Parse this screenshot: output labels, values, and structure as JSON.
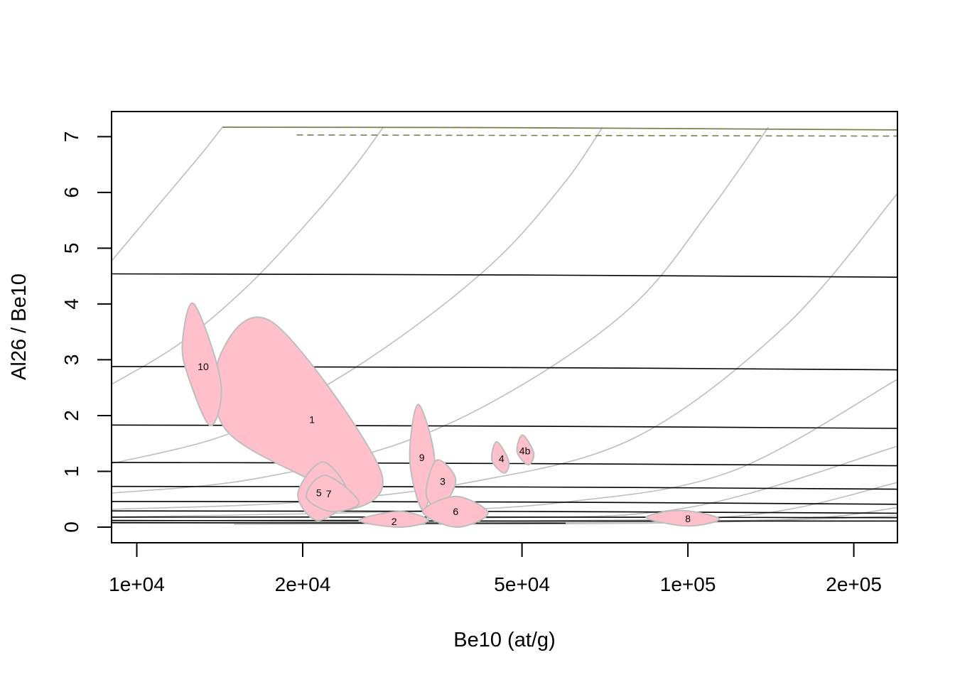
{
  "chart_data": {
    "type": "scatter",
    "title": "",
    "xlabel": "Be10 (at/g)",
    "ylabel": "Al26 / Be10",
    "x_scale": "log",
    "xlim": [
      9000,
      240000
    ],
    "ylim": [
      -0.28,
      7.45
    ],
    "grid": false,
    "legend": "none",
    "x_ticks": [
      {
        "value": 10000,
        "label": "1e+04"
      },
      {
        "value": 20000,
        "label": "2e+04"
      },
      {
        "value": 50000,
        "label": "5e+04"
      },
      {
        "value": 100000,
        "label": "1e+05"
      },
      {
        "value": 200000,
        "label": "2e+05"
      }
    ],
    "y_ticks": [
      {
        "value": 0,
        "label": "0"
      },
      {
        "value": 1,
        "label": "1"
      },
      {
        "value": 2,
        "label": "2"
      },
      {
        "value": 3,
        "label": "3"
      },
      {
        "value": 4,
        "label": "4"
      },
      {
        "value": 5,
        "label": "5"
      },
      {
        "value": 6,
        "label": "6"
      },
      {
        "value": 7,
        "label": "7"
      }
    ],
    "ellipses": [
      {
        "label": "1",
        "points": [
          [
            17700,
            3.66
          ],
          [
            27600,
            1.05
          ],
          [
            24500,
            0.32
          ],
          [
            21500,
            0.75
          ],
          [
            14500,
            1.75
          ],
          [
            14200,
            3.1
          ]
        ],
        "label_at": [
          20800,
          1.93
        ]
      },
      {
        "label": "10",
        "points": [
          [
            12700,
            4.0
          ],
          [
            14200,
            2.6
          ],
          [
            13600,
            1.82
          ],
          [
            12400,
            2.7
          ],
          [
            12100,
            3.3
          ]
        ],
        "label_at": [
          13200,
          2.88
        ]
      },
      {
        "label": "9",
        "points": [
          [
            32400,
            2.2
          ],
          [
            34700,
            1.2
          ],
          [
            33100,
            0.3
          ],
          [
            31300,
            1.2
          ]
        ],
        "label_at": [
          32900,
          1.25
        ]
      },
      {
        "label": "3",
        "points": [
          [
            35000,
            1.2
          ],
          [
            37900,
            0.85
          ],
          [
            35500,
            0.33
          ],
          [
            33500,
            0.6
          ]
        ],
        "label_at": [
          35900,
          0.82
        ]
      },
      {
        "label": "4",
        "points": [
          [
            45000,
            1.53
          ],
          [
            47300,
            1.18
          ],
          [
            46400,
            0.97
          ],
          [
            44100,
            1.2
          ]
        ],
        "label_at": [
          45900,
          1.23
        ]
      },
      {
        "label": "4b",
        "points": [
          [
            50100,
            1.65
          ],
          [
            52500,
            1.33
          ],
          [
            51300,
            1.12
          ],
          [
            49000,
            1.35
          ]
        ],
        "label_at": [
          50600,
          1.37
        ]
      },
      {
        "label": "5",
        "points": [
          [
            21800,
            1.17
          ],
          [
            24200,
            0.55
          ],
          [
            21300,
            0.12
          ],
          [
            19600,
            0.6
          ]
        ],
        "label_at": [
          21400,
          0.62
        ]
      },
      {
        "label": "7",
        "points": [
          [
            22000,
            0.93
          ],
          [
            25300,
            0.45
          ],
          [
            22500,
            0.28
          ],
          [
            20300,
            0.55
          ]
        ],
        "label_at": [
          22300,
          0.6
        ]
      },
      {
        "label": "2",
        "points": [
          [
            30000,
            0.28
          ],
          [
            33800,
            0.12
          ],
          [
            30000,
            0.0
          ],
          [
            25300,
            0.12
          ]
        ],
        "label_at": [
          29300,
          0.1
        ]
      },
      {
        "label": "6",
        "points": [
          [
            38000,
            0.55
          ],
          [
            43400,
            0.25
          ],
          [
            38000,
            0.0
          ],
          [
            33000,
            0.28
          ]
        ],
        "label_at": [
          37900,
          0.28
        ]
      },
      {
        "label": "8",
        "points": [
          [
            97000,
            0.3
          ],
          [
            114000,
            0.15
          ],
          [
            100000,
            0.02
          ],
          [
            84000,
            0.17
          ]
        ],
        "label_at": [
          100000,
          0.15
        ]
      }
    ],
    "ellipse_fill": "#ffc0cb",
    "ellipse_stroke": "#bebebe",
    "steady_state_line": {
      "color": "#7f7f4f",
      "points": [
        [
          14300,
          7.17
        ],
        [
          50000,
          7.16
        ],
        [
          240000,
          7.12
        ]
      ]
    },
    "dashed_line": {
      "color": "#7f7f4f",
      "points": [
        [
          19500,
          7.03
        ],
        [
          240000,
          7.01
        ]
      ]
    },
    "burial_isochrons": {
      "color": "#000000",
      "curves": [
        [
          [
            9000,
            4.54
          ],
          [
            50000,
            4.52
          ],
          [
            240000,
            4.48
          ]
        ],
        [
          [
            9000,
            2.88
          ],
          [
            50000,
            2.86
          ],
          [
            240000,
            2.82
          ]
        ],
        [
          [
            9000,
            1.83
          ],
          [
            50000,
            1.81
          ],
          [
            240000,
            1.77
          ]
        ],
        [
          [
            9000,
            1.16
          ],
          [
            50000,
            1.14
          ],
          [
            240000,
            1.1
          ]
        ],
        [
          [
            9000,
            0.73
          ],
          [
            50000,
            0.72
          ],
          [
            240000,
            0.68
          ]
        ],
        [
          [
            9000,
            0.46
          ],
          [
            50000,
            0.45
          ],
          [
            240000,
            0.41
          ]
        ],
        [
          [
            9000,
            0.29
          ],
          [
            50000,
            0.28
          ],
          [
            240000,
            0.25
          ]
        ],
        [
          [
            9000,
            0.18
          ],
          [
            50000,
            0.18
          ],
          [
            240000,
            0.17
          ]
        ],
        [
          [
            9000,
            0.12
          ],
          [
            50000,
            0.11
          ],
          [
            240000,
            0.11
          ]
        ],
        [
          [
            9000,
            0.08
          ],
          [
            20000,
            0.075
          ],
          [
            60000,
            0.07
          ]
        ]
      ]
    },
    "exposure_curves": {
      "color": "#bebebe",
      "curves": [
        [
          [
            9000,
            4.77
          ],
          [
            11000,
            5.8
          ],
          [
            13000,
            6.65
          ],
          [
            14300,
            7.17
          ]
        ],
        [
          [
            9000,
            2.56
          ],
          [
            12000,
            3.3
          ],
          [
            16000,
            4.35
          ],
          [
            21000,
            5.6
          ],
          [
            25000,
            6.5
          ],
          [
            28000,
            7.17
          ]
        ],
        [
          [
            9000,
            1.14
          ],
          [
            14000,
            1.6
          ],
          [
            20000,
            2.3
          ],
          [
            30000,
            3.4
          ],
          [
            45000,
            4.8
          ],
          [
            60000,
            6.2
          ],
          [
            70000,
            7.17
          ]
        ],
        [
          [
            9000,
            0.61
          ],
          [
            16000,
            0.85
          ],
          [
            30000,
            1.5
          ],
          [
            50000,
            2.55
          ],
          [
            80000,
            4.0
          ],
          [
            110000,
            5.7
          ],
          [
            140000,
            7.17
          ]
        ],
        [
          [
            9000,
            0.32
          ],
          [
            20000,
            0.45
          ],
          [
            40000,
            0.8
          ],
          [
            80000,
            1.6
          ],
          [
            150000,
            3.6
          ],
          [
            240000,
            5.98
          ]
        ],
        [
          [
            9000,
            0.18
          ],
          [
            30000,
            0.28
          ],
          [
            60000,
            0.45
          ],
          [
            120000,
            1.0
          ],
          [
            240000,
            2.65
          ]
        ],
        [
          [
            9000,
            0.11
          ],
          [
            40000,
            0.16
          ],
          [
            100000,
            0.35
          ],
          [
            240000,
            1.45
          ]
        ],
        [
          [
            9000,
            0.07
          ],
          [
            50000,
            0.11
          ],
          [
            130000,
            0.22
          ],
          [
            240000,
            0.8
          ]
        ],
        [
          [
            15000,
            0.05
          ],
          [
            60000,
            0.08
          ],
          [
            160000,
            0.15
          ],
          [
            240000,
            0.35
          ]
        ],
        [
          [
            30000,
            0.05
          ],
          [
            100000,
            0.08
          ],
          [
            240000,
            0.2
          ]
        ]
      ]
    }
  }
}
